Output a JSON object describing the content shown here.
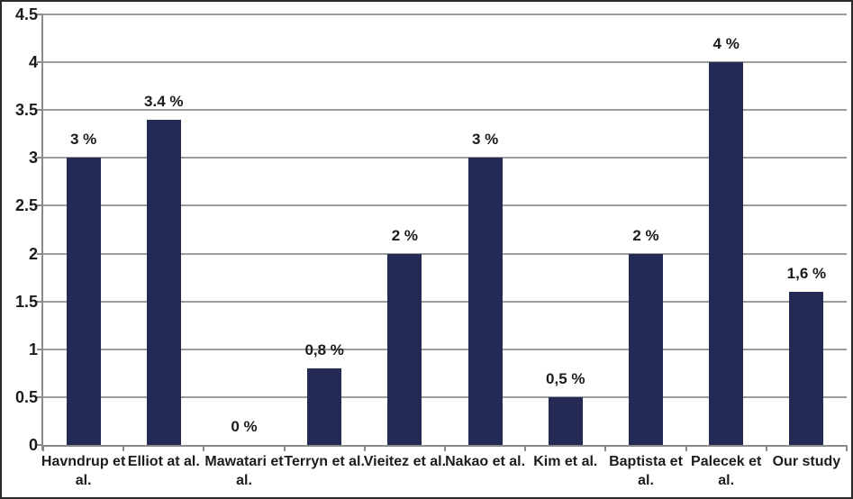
{
  "chart_data": {
    "type": "bar",
    "title": "",
    "xlabel": "",
    "ylabel": "",
    "categories": [
      "Havndrup et al.",
      "Elliot at al.",
      "Mawatari et al.",
      "Terryn et al.",
      "Vieitez et al.",
      "Nakao et al.",
      "Kim et al.",
      "Baptista et al.",
      "Palecek et al.",
      "Our study"
    ],
    "category_display_lines": [
      "Havndrup et\nal.",
      "Elliot at al.",
      "Mawatari et\nal.",
      "Terryn et al.",
      "Vieitez et al.",
      "Nakao et al.",
      "Kim et al.",
      "Baptista et\nal.",
      "Palecek et\nal.",
      "Our study"
    ],
    "values": [
      3,
      3.4,
      0,
      0.8,
      2,
      3,
      0.5,
      2,
      4,
      1.6
    ],
    "data_labels": [
      "3 %",
      "3.4 %",
      "0 %",
      "0,8 %",
      "2 %",
      "3 %",
      "0,5 %",
      "2 %",
      "4 %",
      "1,6 %"
    ],
    "ylim": [
      0,
      4.5
    ],
    "ytick_step": 0.5,
    "ytick_labels": [
      "0",
      "0.5",
      "1",
      "1.5",
      "2",
      "2.5",
      "3",
      "3.5",
      "4",
      "4.5"
    ],
    "grid": true,
    "legend": false,
    "colors": {
      "bar": "#232a53",
      "gridline": "#9c9c9c",
      "axis": "#8a8a8a",
      "text": "#1c1c1c",
      "frame": "#2b2b2b",
      "background": "#ffffff"
    }
  }
}
